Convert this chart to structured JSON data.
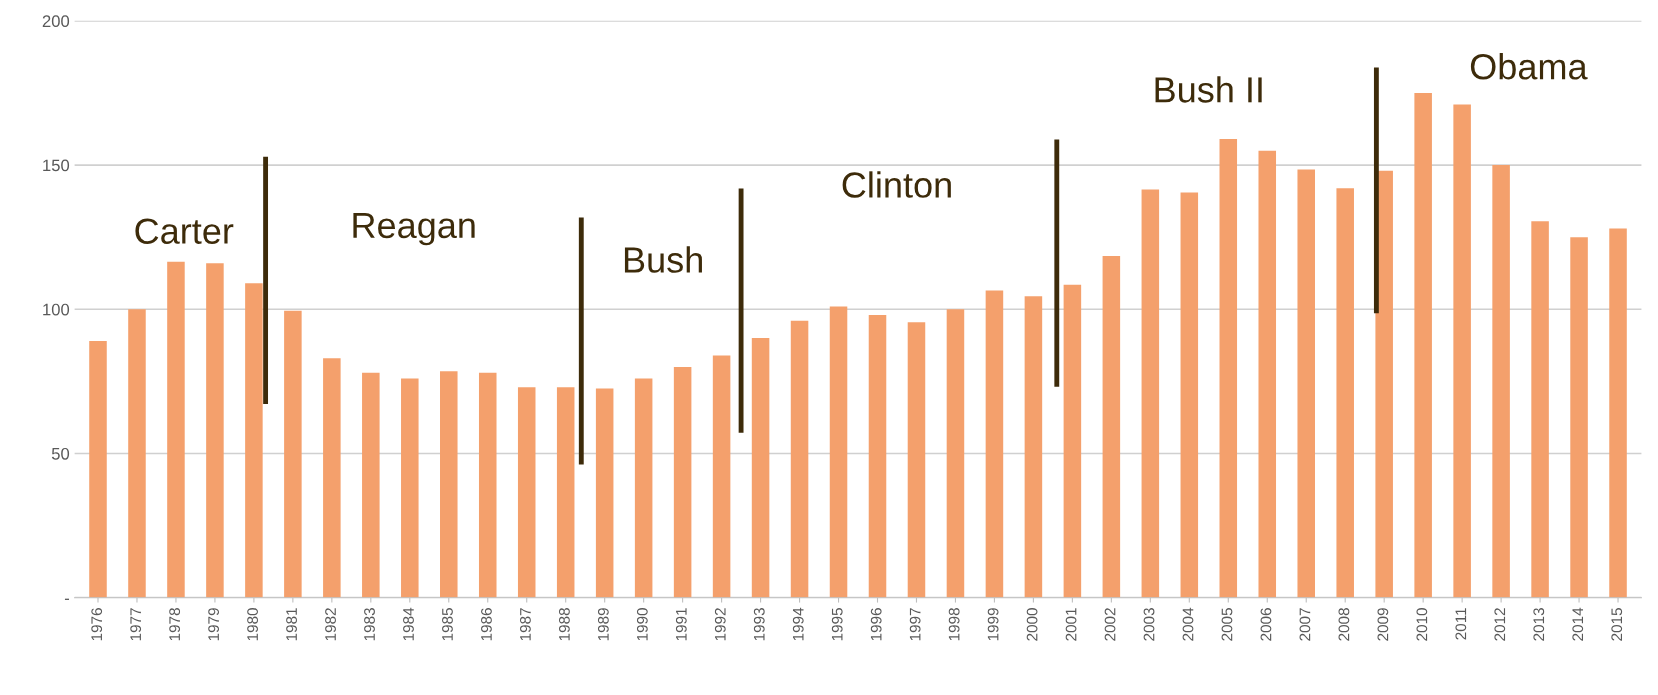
{
  "chart_data": {
    "type": "bar",
    "categories": [
      "1976",
      "1977",
      "1978",
      "1979",
      "1980",
      "1981",
      "1982",
      "1983",
      "1984",
      "1985",
      "1986",
      "1987",
      "1988",
      "1989",
      "1990",
      "1991",
      "1992",
      "1993",
      "1994",
      "1995",
      "1996",
      "1997",
      "1998",
      "1999",
      "2000",
      "2001",
      "2002",
      "2003",
      "2004",
      "2005",
      "2006",
      "2007",
      "2008",
      "2009",
      "2010",
      "2011",
      "2012",
      "2013",
      "2014",
      "2015"
    ],
    "values": [
      89,
      100,
      116.5,
      116,
      109,
      99.5,
      83,
      78,
      76,
      78.5,
      78,
      73,
      73,
      72.5,
      76,
      80,
      84,
      90,
      96,
      101,
      98,
      95.5,
      100,
      106.5,
      104.5,
      108.5,
      118.5,
      141.5,
      140.5,
      159,
      155,
      148.5,
      142,
      148,
      175,
      171,
      150,
      130.5,
      125,
      128
    ],
    "color": "#f4a06c",
    "ylim": [
      0,
      200
    ],
    "yticks": [
      {
        "value": 0,
        "label": "-"
      },
      50,
      100,
      150,
      200
    ],
    "grid": "y",
    "legend": false,
    "annotations": [
      "Carter",
      "Reagan",
      "Bush",
      "Clinton",
      "Bush II",
      "Obama"
    ]
  }
}
